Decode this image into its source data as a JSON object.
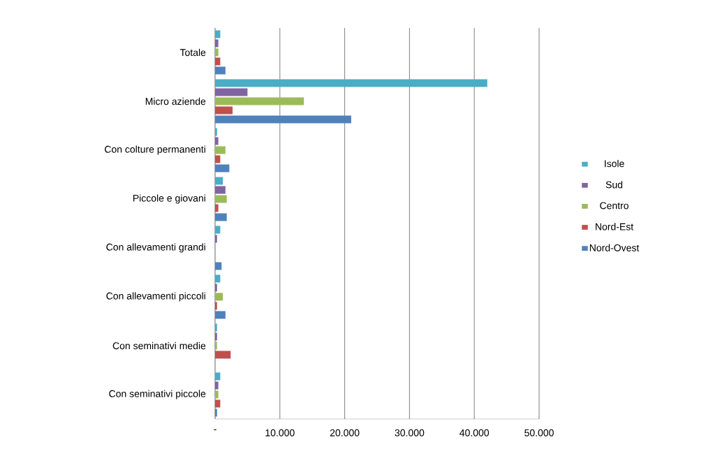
{
  "chart_data": {
    "type": "bar",
    "orientation": "horizontal",
    "categories": [
      "Totale",
      "Micro aziende",
      "Con colture permanenti",
      "Piccole e giovani",
      "Con allevamenti  grandi",
      "Con allevamenti  piccoli",
      "Con seminativi  medie",
      "Con seminativi  piccole"
    ],
    "series": [
      {
        "name": "Isole",
        "color": "#4bacc6",
        "values": [
          800,
          42000,
          300,
          1200,
          800,
          800,
          300,
          800
        ]
      },
      {
        "name": "Sud",
        "color": "#8064a2",
        "values": [
          500,
          5000,
          500,
          1600,
          300,
          300,
          300,
          500
        ]
      },
      {
        "name": "Centro",
        "color": "#9bbb59",
        "values": [
          500,
          13700,
          1600,
          1800,
          null,
          1200,
          300,
          500
        ]
      },
      {
        "name": "Nord-Est",
        "color": "#c0504d",
        "values": [
          800,
          2700,
          800,
          500,
          null,
          300,
          2400,
          800
        ]
      },
      {
        "name": "Nord-Ovest",
        "color": "#4f81bd",
        "values": [
          1600,
          21000,
          2200,
          1800,
          1000,
          1600,
          null,
          300
        ]
      }
    ],
    "xlim": [
      0,
      50000
    ],
    "xticks": [
      {
        "value": 0,
        "label": "-"
      },
      {
        "value": 10000,
        "label": "10.000"
      },
      {
        "value": 20000,
        "label": "20.000"
      },
      {
        "value": 30000,
        "label": "30.000"
      },
      {
        "value": 40000,
        "label": "40.000"
      },
      {
        "value": 50000,
        "label": "50.000"
      }
    ],
    "grid": "x",
    "legend": "right"
  }
}
